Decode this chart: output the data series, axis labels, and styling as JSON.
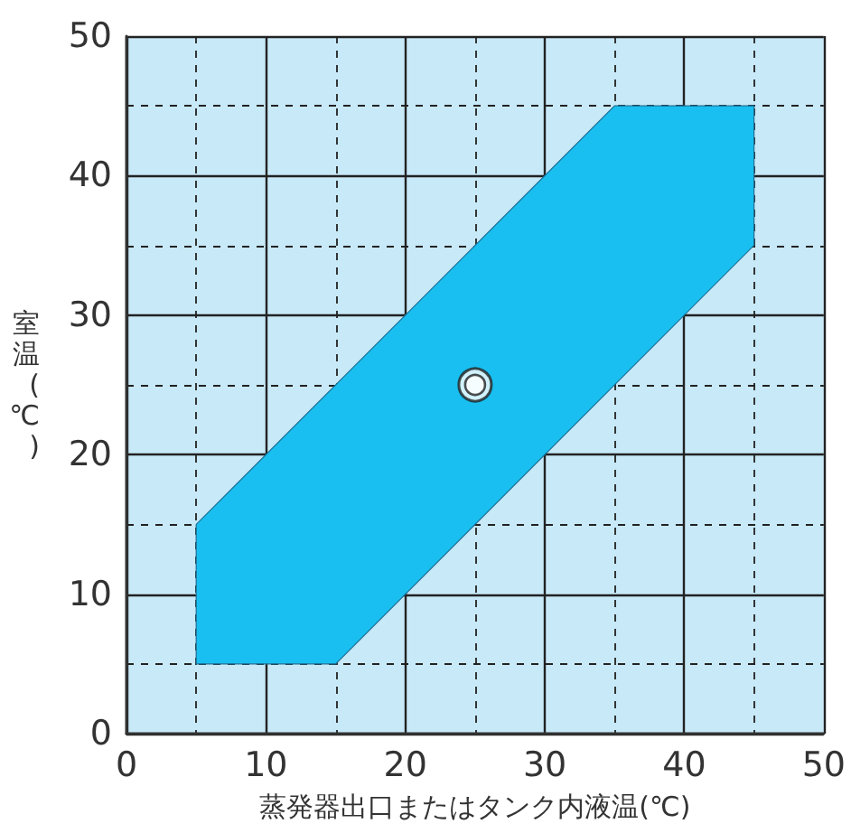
{
  "chart_data": {
    "type": "area",
    "xlabel": "蒸発器出口またはタンク内液温(℃)",
    "ylabel": "室温(℃)",
    "xlim": [
      0,
      50
    ],
    "ylim": [
      0,
      50
    ],
    "xticks": [
      0,
      10,
      20,
      30,
      40,
      50
    ],
    "yticks": [
      0,
      10,
      20,
      30,
      40,
      50
    ],
    "grid": true,
    "series": [
      {
        "color": "#19bff0",
        "x": [
          5,
          15,
          45,
          45,
          35,
          5
        ],
        "values": [
          5,
          5,
          35,
          45,
          45,
          15
        ]
      },
      {
        "type": "scatter",
        "color": "#ffffff",
        "marker": "circle",
        "x": [
          25
        ],
        "values": [
          25
        ]
      }
    ]
  }
}
